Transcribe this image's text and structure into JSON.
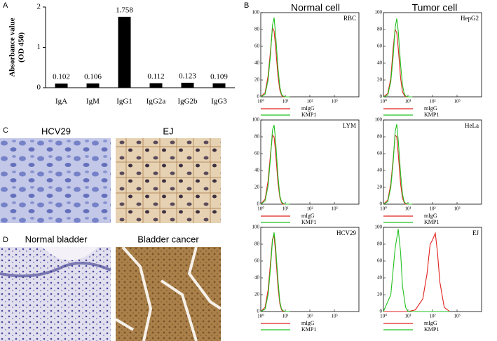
{
  "figure": {
    "panel_labels": [
      "A",
      "B",
      "C",
      "D"
    ],
    "column_headers": [
      "Normal cell",
      "Tumor cell"
    ],
    "images": [
      "HCV29",
      "EJ",
      "Normal bladder",
      "Bladder cancer"
    ]
  },
  "chart_data": [
    {
      "type": "bar",
      "ylabel": [
        "Absorbance value",
        "(OD 450)"
      ],
      "categories": [
        "IgA",
        "IgM",
        "IgG1",
        "IgG2a",
        "IgG2b",
        "IgG3"
      ],
      "values": [
        0.102,
        0.106,
        1.758,
        0.112,
        0.123,
        0.109
      ],
      "color": "#000000",
      "ylim": [
        0,
        2
      ],
      "yticks": [
        0,
        1,
        2
      ]
    },
    {
      "type": "line",
      "title": "RBC",
      "xscale": "log",
      "xlim": [
        1,
        10000
      ],
      "xticks": [
        {
          "value": 1,
          "label": "10⁰"
        },
        {
          "value": 10,
          "label": "10¹"
        },
        {
          "value": 100,
          "label": "10²"
        },
        {
          "value": 1000,
          "label": "10³"
        }
      ],
      "ylim": [
        0,
        100
      ],
      "yticks": [
        0,
        20,
        40,
        60,
        80,
        100
      ],
      "legend": "bottom",
      "x": [
        1,
        1.5,
        2,
        2.5,
        3,
        3.5,
        4,
        5,
        6,
        7,
        8,
        10,
        15
      ],
      "series": [
        {
          "name": "mIgG",
          "color": "#e0201c",
          "values": [
            0,
            5,
            25,
            55,
            82,
            78,
            60,
            25,
            8,
            2,
            0,
            0,
            0
          ]
        },
        {
          "name": "KMP1",
          "color": "#22c020",
          "values": [
            0,
            3,
            20,
            50,
            85,
            94,
            75,
            35,
            12,
            3,
            1,
            0,
            0
          ]
        }
      ]
    },
    {
      "type": "line",
      "title": "HepG2",
      "xscale": "log",
      "xlim": [
        1,
        10000
      ],
      "xticks": [
        {
          "value": 1,
          "label": "10⁰"
        },
        {
          "value": 10,
          "label": "10¹"
        },
        {
          "value": 100,
          "label": "10²"
        },
        {
          "value": 1000,
          "label": "10³"
        }
      ],
      "ylim": [
        0,
        100
      ],
      "yticks": [
        0,
        20,
        40,
        60,
        80,
        100
      ],
      "legend": "bottom",
      "x": [
        1,
        1.5,
        2,
        2.5,
        3,
        3.5,
        4,
        5,
        6,
        7,
        8,
        10,
        15
      ],
      "series": [
        {
          "name": "mIgG",
          "color": "#e0201c",
          "values": [
            0,
            4,
            22,
            58,
            80,
            76,
            58,
            22,
            6,
            2,
            0,
            0,
            0
          ]
        },
        {
          "name": "KMP1",
          "color": "#22c020",
          "values": [
            0,
            2,
            18,
            48,
            82,
            93,
            78,
            38,
            14,
            4,
            1,
            0,
            0
          ]
        }
      ]
    },
    {
      "type": "line",
      "title": "LYM",
      "xscale": "log",
      "xlim": [
        1,
        10000
      ],
      "xticks": [
        {
          "value": 1,
          "label": "10⁰"
        },
        {
          "value": 10,
          "label": "10¹"
        },
        {
          "value": 100,
          "label": "10²"
        },
        {
          "value": 1000,
          "label": "10³"
        }
      ],
      "ylim": [
        0,
        100
      ],
      "yticks": [
        0,
        20,
        40,
        60,
        80,
        100
      ],
      "legend": "bottom",
      "x": [
        1,
        1.5,
        2,
        2.5,
        3,
        3.5,
        4,
        5,
        6,
        7,
        8,
        10,
        15
      ],
      "series": [
        {
          "name": "mIgG",
          "color": "#e0201c",
          "values": [
            0,
            6,
            28,
            60,
            82,
            80,
            62,
            26,
            8,
            2,
            0,
            0,
            0
          ]
        },
        {
          "name": "KMP1",
          "color": "#22c020",
          "values": [
            0,
            4,
            22,
            55,
            88,
            94,
            76,
            34,
            10,
            3,
            1,
            0,
            0
          ]
        }
      ]
    },
    {
      "type": "line",
      "title": "HeLa",
      "xscale": "log",
      "xlim": [
        1,
        10000
      ],
      "xticks": [
        {
          "value": 1,
          "label": "10⁰"
        },
        {
          "value": 10,
          "label": "10¹"
        },
        {
          "value": 100,
          "label": "10²"
        },
        {
          "value": 1000,
          "label": "10³"
        }
      ],
      "ylim": [
        0,
        100
      ],
      "yticks": [
        0,
        20,
        40,
        60,
        80,
        100
      ],
      "legend": "bottom",
      "x": [
        1,
        1.5,
        2,
        2.5,
        3,
        3.5,
        4,
        5,
        6,
        7,
        8,
        10,
        15
      ],
      "series": [
        {
          "name": "mIgG",
          "color": "#e0201c",
          "values": [
            0,
            5,
            24,
            54,
            82,
            80,
            60,
            24,
            7,
            2,
            0,
            0,
            0
          ]
        },
        {
          "name": "KMP1",
          "color": "#22c020",
          "values": [
            0,
            3,
            20,
            50,
            86,
            95,
            76,
            36,
            12,
            3,
            1,
            0,
            0
          ]
        }
      ]
    },
    {
      "type": "line",
      "title": "HCV29",
      "xscale": "log",
      "xlim": [
        1,
        10000
      ],
      "xticks": [
        {
          "value": 1,
          "label": "10⁰"
        },
        {
          "value": 10,
          "label": "10¹"
        },
        {
          "value": 100,
          "label": "10²"
        },
        {
          "value": 1000,
          "label": "10³"
        }
      ],
      "ylim": [
        0,
        100
      ],
      "yticks": [
        0,
        20,
        40,
        60,
        80,
        100
      ],
      "legend": "bottom",
      "x": [
        1,
        1.5,
        2,
        2.5,
        3,
        3.5,
        4,
        5,
        6,
        7,
        8,
        10,
        15
      ],
      "series": [
        {
          "name": "mIgG",
          "color": "#e0201c",
          "values": [
            0,
            5,
            26,
            58,
            86,
            90,
            70,
            30,
            9,
            2,
            0,
            0,
            0
          ]
        },
        {
          "name": "KMP1",
          "color": "#22c020",
          "values": [
            0,
            3,
            20,
            52,
            84,
            94,
            78,
            38,
            12,
            3,
            1,
            0,
            0
          ]
        }
      ]
    },
    {
      "type": "line",
      "title": "EJ",
      "xscale": "log",
      "xlim": [
        1,
        10000
      ],
      "xticks": [
        {
          "value": 1,
          "label": "10⁰"
        },
        {
          "value": 10,
          "label": "10¹"
        },
        {
          "value": 100,
          "label": "10²"
        },
        {
          "value": 1000,
          "label": "10³"
        }
      ],
      "ylim": [
        0,
        100
      ],
      "yticks": [
        0,
        20,
        40,
        60,
        80,
        100
      ],
      "legend": "bottom",
      "x": [
        1,
        2,
        3,
        4,
        5,
        6,
        8,
        10,
        20,
        40,
        60,
        80,
        100,
        130,
        160,
        200,
        300,
        500
      ],
      "series": [
        {
          "name": "mIgG",
          "color": "#e0201c",
          "values": [
            0,
            0,
            0,
            0,
            0,
            0,
            0,
            0,
            2,
            15,
            45,
            80,
            85,
            93,
            70,
            35,
            5,
            0
          ]
        },
        {
          "name": "KMP1",
          "color": "#22c020",
          "values": [
            0,
            20,
            75,
            98,
            70,
            30,
            5,
            0,
            0,
            0,
            0,
            0,
            0,
            0,
            0,
            0,
            0,
            0
          ]
        }
      ]
    }
  ]
}
